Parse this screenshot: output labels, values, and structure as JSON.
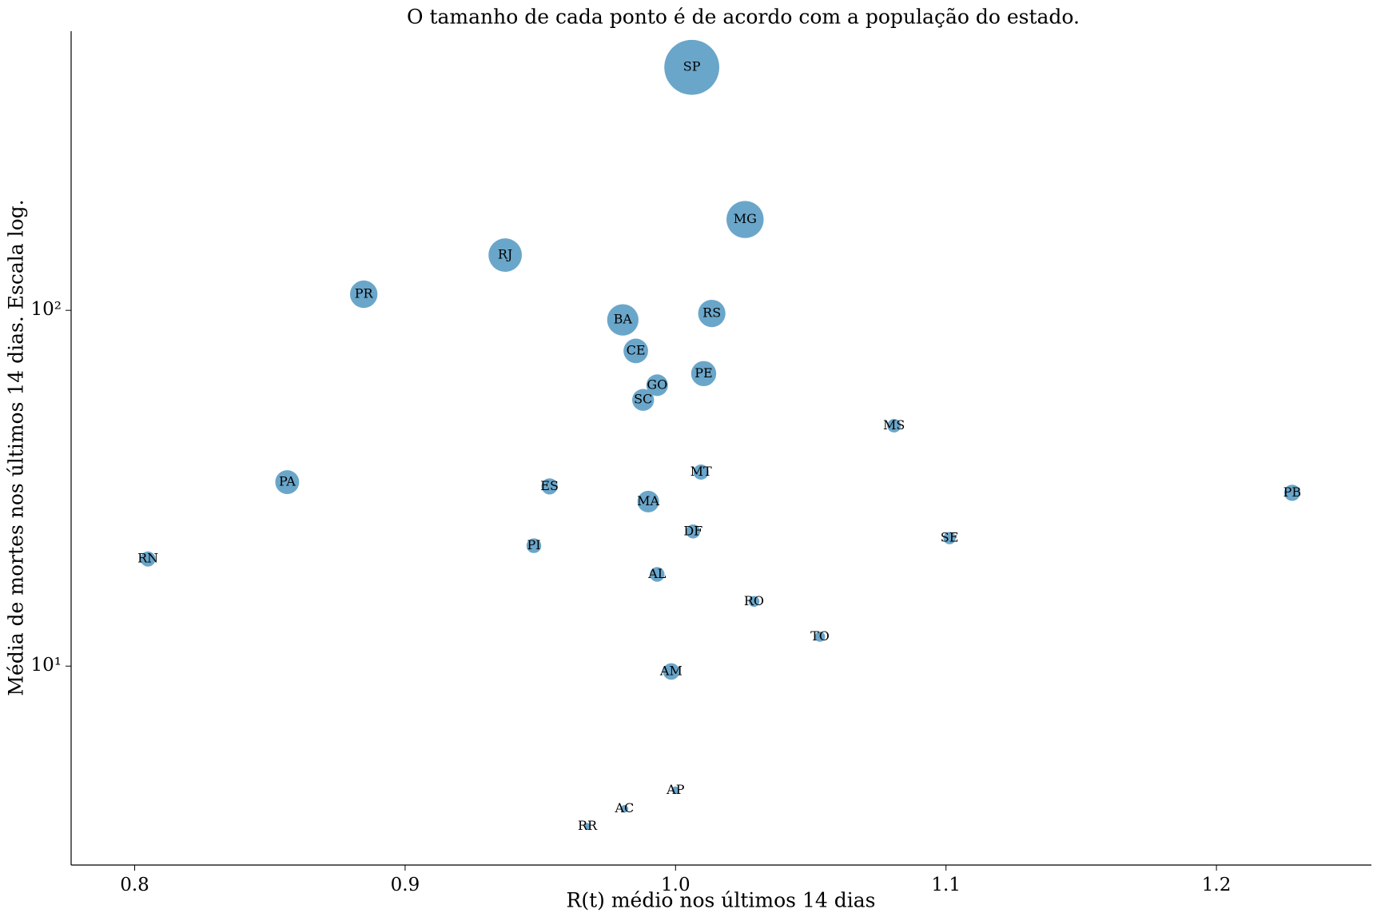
{
  "chart_data": {
    "type": "scatter",
    "title": "O tamanho de cada ponto é de acordo com a população do estado.",
    "xlabel": "R(t) médio nos últimos 14 dias",
    "ylabel": "Média de mortes nos últimos 14 dias. Escala log.",
    "labels": [
      "SP",
      "MG",
      "RJ",
      "PR",
      "BA",
      "RS",
      "CE",
      "PE",
      "GO",
      "SC",
      "MS",
      "MT",
      "PA",
      "ES",
      "PB",
      "MA",
      "DF",
      "SE",
      "PI",
      "RN",
      "AL",
      "RO",
      "TO",
      "AM",
      "AP",
      "AC",
      "RR"
    ],
    "x": [
      1.006,
      1.0257,
      0.937,
      0.8847,
      0.9805,
      1.0134,
      0.9853,
      1.0104,
      0.9932,
      0.988,
      1.0808,
      1.0094,
      0.8564,
      0.9534,
      1.228,
      0.9899,
      1.0065,
      1.1013,
      0.9476,
      0.8049,
      0.9932,
      1.029,
      1.0534,
      0.9984,
      1.0,
      0.9811,
      0.9674
    ],
    "values": [
      482,
      180,
      143,
      111,
      94,
      98,
      76.9,
      66.4,
      61.6,
      56,
      47.4,
      35.1,
      32.9,
      32.0,
      30.7,
      29.0,
      23.9,
      22.9,
      21.8,
      20.0,
      18.1,
      15.2,
      12.1,
      9.66,
      4.48,
      3.97,
      3.55
    ],
    "sizes": [
      46,
      21,
      17,
      11.5,
      15,
      11.4,
      9.2,
      9.6,
      7.1,
      7.3,
      2.8,
      3.5,
      8.7,
      4.0,
      4.0,
      7.1,
      3.0,
      2.3,
      3.3,
      3.5,
      3.3,
      1.8,
      1.6,
      4.2,
      0.86,
      0.9,
      0.6
    ],
    "color": "#6aa6ca",
    "xlim": [
      0.7765,
      1.2573
    ],
    "ylim": [
      2.76,
      609
    ],
    "log_scale": "y",
    "xticks": [
      0.8,
      0.9,
      {
        "value": 1.0,
        "label": "1.0"
      },
      1.1,
      1.2
    ],
    "yticks": [
      {
        "value": 10,
        "label": "10¹"
      },
      {
        "value": 100,
        "label": "10²"
      }
    ]
  }
}
